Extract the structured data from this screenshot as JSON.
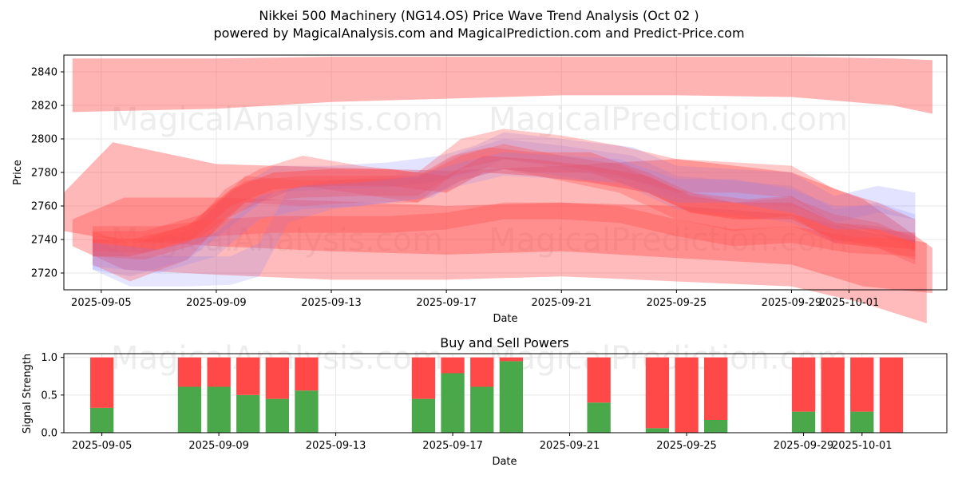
{
  "chart_data": [
    {
      "type": "area",
      "title_line1": "Nikkei 500 Machinery (NG14.OS) Price Wave Trend Analysis (Oct 02 )",
      "title_line2": "powered by MagicalAnalysis.com and MagicalPrediction.com and Predict-Price.com",
      "xlabel": "Date",
      "ylabel": "Price",
      "ylim": [
        2710,
        2850
      ],
      "xlim_days": [
        -1.3,
        29.4
      ],
      "start_date": "2025-09-05",
      "yticks": [
        2720,
        2740,
        2760,
        2780,
        2800,
        2820,
        2840
      ],
      "xticks": [
        {
          "day": 0,
          "label": "2025-09-05"
        },
        {
          "day": 4,
          "label": "2025-09-09"
        },
        {
          "day": 8,
          "label": "2025-09-13"
        },
        {
          "day": 12,
          "label": "2025-09-17"
        },
        {
          "day": 16,
          "label": "2025-09-21"
        },
        {
          "day": 20,
          "label": "2025-09-25"
        },
        {
          "day": 24,
          "label": "2025-09-29"
        },
        {
          "day": 26,
          "label": "2025-10-01"
        }
      ],
      "watermarks": [
        "MagicalAnalysis.com",
        "MagicalPrediction.com"
      ],
      "colors": {
        "red": "#ff4d4d",
        "blue": "#8080ff"
      },
      "series": [
        {
          "name": "upper-wide-band",
          "color": "red",
          "opacity": 0.42,
          "x": [
            -1.0,
            4,
            8,
            12,
            16,
            20,
            24,
            27.5,
            28.9
          ],
          "upper": [
            2848,
            2848,
            2849,
            2849,
            2849,
            2849,
            2849,
            2848,
            2847
          ],
          "lower": [
            2816,
            2818,
            2822,
            2824,
            2826,
            2826,
            2825,
            2820,
            2815
          ]
        },
        {
          "name": "mid-wide-band",
          "color": "red",
          "opacity": 0.4,
          "x": [
            -1.3,
            0.4,
            4,
            8,
            12,
            16,
            20,
            24,
            26.5,
            28.9
          ],
          "upper": [
            2768,
            2798,
            2785,
            2783,
            2781,
            2784,
            2788,
            2780,
            2764,
            2735
          ],
          "lower": [
            2745,
            2740,
            2736,
            2733,
            2731,
            2733,
            2729,
            2725,
            2712,
            2708
          ]
        },
        {
          "name": "low-wide-band",
          "color": "red",
          "opacity": 0.38,
          "x": [
            -1.0,
            0.8,
            4,
            8,
            12,
            16,
            20,
            24,
            26.5,
            28.7
          ],
          "upper": [
            2752,
            2765,
            2765,
            2763,
            2760,
            2762,
            2760,
            2755,
            2745,
            2738
          ],
          "lower": [
            2736,
            2722,
            2719,
            2716,
            2716,
            2718,
            2715,
            2712,
            2702,
            2690
          ]
        },
        {
          "name": "wave-1",
          "color": "blue",
          "opacity": 0.22,
          "x": [
            -0.3,
            1,
            3,
            4.5,
            6,
            8,
            10,
            11.8,
            13,
            14,
            16,
            18.5,
            20,
            22,
            24,
            25.5,
            27,
            28.3
          ],
          "upper": [
            2742,
            2736,
            2745,
            2768,
            2784,
            2784,
            2786,
            2790,
            2796,
            2804,
            2800,
            2795,
            2784,
            2782,
            2780,
            2766,
            2772,
            2768
          ],
          "lower": [
            2722,
            2718,
            2728,
            2748,
            2768,
            2770,
            2771,
            2775,
            2780,
            2788,
            2782,
            2775,
            2765,
            2762,
            2760,
            2750,
            2756,
            2752
          ]
        },
        {
          "name": "wave-2",
          "color": "blue",
          "opacity": 0.2,
          "x": [
            -0.3,
            1,
            3,
            4.5,
            5.5,
            6.5,
            8,
            10,
            11.5,
            12.5,
            14,
            16,
            18.5,
            20,
            22,
            24,
            25.5,
            27,
            28.3
          ],
          "upper": [
            2740,
            2730,
            2730,
            2730,
            2738,
            2770,
            2775,
            2778,
            2782,
            2792,
            2800,
            2796,
            2790,
            2778,
            2775,
            2772,
            2758,
            2762,
            2755
          ],
          "lower": [
            2722,
            2712,
            2712,
            2713,
            2718,
            2750,
            2758,
            2762,
            2765,
            2775,
            2782,
            2778,
            2770,
            2758,
            2755,
            2750,
            2738,
            2742,
            2737
          ]
        },
        {
          "name": "wave-3",
          "color": "red",
          "opacity": 0.3,
          "x": [
            -0.3,
            1,
            3,
            4.3,
            5.5,
            7,
            9,
            11,
            12.5,
            14,
            16,
            18,
            20,
            22,
            24,
            25.5,
            27,
            28.3
          ],
          "upper": [
            2745,
            2738,
            2745,
            2770,
            2782,
            2790,
            2784,
            2780,
            2800,
            2806,
            2802,
            2796,
            2788,
            2786,
            2784,
            2770,
            2762,
            2752
          ],
          "lower": [
            2725,
            2715,
            2728,
            2752,
            2762,
            2772,
            2767,
            2762,
            2782,
            2788,
            2784,
            2778,
            2768,
            2768,
            2765,
            2750,
            2744,
            2733
          ]
        },
        {
          "name": "wave-4",
          "color": "red",
          "opacity": 0.3,
          "x": [
            -0.3,
            1.5,
            3.5,
            5,
            7,
            9,
            11,
            12.5,
            14,
            16,
            18,
            20,
            22,
            24,
            25.5,
            27,
            28.3
          ],
          "upper": [
            2742,
            2740,
            2752,
            2778,
            2775,
            2776,
            2777,
            2790,
            2797,
            2790,
            2785,
            2770,
            2762,
            2765,
            2755,
            2750,
            2740
          ],
          "lower": [
            2730,
            2728,
            2738,
            2762,
            2760,
            2762,
            2762,
            2775,
            2782,
            2775,
            2768,
            2752,
            2745,
            2748,
            2738,
            2735,
            2725
          ]
        },
        {
          "name": "wave-5",
          "color": "red",
          "opacity": 0.35,
          "x": [
            -0.3,
            1.5,
            3.5,
            5,
            7,
            9,
            11,
            12.2,
            13.5,
            15,
            17,
            19,
            20.5,
            22.5,
            24,
            25.5,
            27,
            28.3
          ],
          "upper": [
            2745,
            2745,
            2755,
            2775,
            2778,
            2778,
            2778,
            2790,
            2795,
            2792,
            2792,
            2780,
            2768,
            2764,
            2766,
            2750,
            2748,
            2742
          ],
          "lower": [
            2733,
            2732,
            2742,
            2762,
            2765,
            2766,
            2766,
            2778,
            2783,
            2780,
            2780,
            2768,
            2756,
            2752,
            2754,
            2738,
            2735,
            2728
          ]
        },
        {
          "name": "wave-6",
          "color": "red",
          "opacity": 0.35,
          "x": [
            -0.3,
            2,
            4,
            6,
            8,
            10,
            12,
            14,
            16,
            18,
            20,
            22,
            24,
            26,
            28.3
          ],
          "upper": [
            2748,
            2748,
            2752,
            2754,
            2754,
            2754,
            2756,
            2762,
            2762,
            2760,
            2752,
            2746,
            2748,
            2742,
            2740
          ],
          "lower": [
            2738,
            2738,
            2742,
            2744,
            2744,
            2744,
            2746,
            2752,
            2752,
            2750,
            2742,
            2736,
            2738,
            2732,
            2730
          ]
        },
        {
          "name": "wave-7",
          "color": "red",
          "opacity": 0.45,
          "x": [
            -0.3,
            1,
            3,
            4.5,
            6,
            8,
            10,
            12,
            13.3,
            15,
            17,
            19,
            20.5,
            22,
            24,
            25.5,
            27,
            28.3
          ],
          "upper": [
            2740,
            2740,
            2748,
            2770,
            2780,
            2782,
            2782,
            2778,
            2790,
            2788,
            2784,
            2778,
            2766,
            2762,
            2762,
            2750,
            2746,
            2744
          ],
          "lower": [
            2730,
            2730,
            2738,
            2760,
            2770,
            2772,
            2772,
            2768,
            2780,
            2778,
            2774,
            2768,
            2756,
            2752,
            2752,
            2740,
            2736,
            2734
          ]
        },
        {
          "name": "wave-8",
          "color": "blue",
          "opacity": 0.18,
          "x": [
            -0.3,
            2,
            4,
            5.5,
            7,
            9,
            11,
            12.5,
            14,
            16,
            18,
            20,
            22,
            24,
            25.5,
            27,
            28.3
          ],
          "upper": [
            2738,
            2734,
            2744,
            2766,
            2772,
            2774,
            2778,
            2786,
            2792,
            2790,
            2788,
            2776,
            2776,
            2770,
            2760,
            2760,
            2752
          ],
          "lower": [
            2724,
            2720,
            2730,
            2752,
            2758,
            2760,
            2764,
            2772,
            2778,
            2776,
            2774,
            2762,
            2762,
            2756,
            2746,
            2746,
            2738
          ]
        }
      ]
    },
    {
      "type": "bar",
      "title": "Buy and Sell Powers",
      "xlabel": "Date",
      "ylabel": "Signal Strength",
      "ylim": [
        0,
        1.05
      ],
      "xlim_days": [
        -1.3,
        28.9
      ],
      "start_date": "2025-09-05",
      "yticks": [
        {
          "value": 0.0,
          "label": "0.0"
        },
        {
          "value": 0.5,
          "label": "0.5"
        },
        {
          "value": 1.0,
          "label": "1.0"
        }
      ],
      "xticks": [
        {
          "day": 0,
          "label": "2025-09-05"
        },
        {
          "day": 4,
          "label": "2025-09-09"
        },
        {
          "day": 8,
          "label": "2025-09-13"
        },
        {
          "day": 12,
          "label": "2025-09-17"
        },
        {
          "day": 16,
          "label": "2025-09-21"
        },
        {
          "day": 20,
          "label": "2025-09-25"
        },
        {
          "day": 24,
          "label": "2025-09-29"
        },
        {
          "day": 26,
          "label": "2025-10-01"
        }
      ],
      "watermarks": [
        "MagicalAnalysis.com",
        "MagicalPrediction.com"
      ],
      "colors": {
        "buy": "#4aa84a",
        "sell": "#ff4848"
      },
      "days": [
        0,
        3,
        4,
        5,
        6,
        7,
        11,
        12,
        13,
        14,
        17,
        19,
        20,
        21,
        24,
        25,
        26,
        27
      ],
      "buy": [
        0.33,
        0.61,
        0.61,
        0.5,
        0.45,
        0.56,
        0.45,
        0.79,
        0.61,
        0.95,
        0.4,
        0.06,
        0.0,
        0.17,
        0.28,
        0.0,
        0.28,
        0.0
      ],
      "sell": [
        0.67,
        0.39,
        0.39,
        0.5,
        0.55,
        0.44,
        0.55,
        0.21,
        0.39,
        0.05,
        0.6,
        0.94,
        1.0,
        0.83,
        0.72,
        1.0,
        0.72,
        1.0
      ]
    }
  ]
}
